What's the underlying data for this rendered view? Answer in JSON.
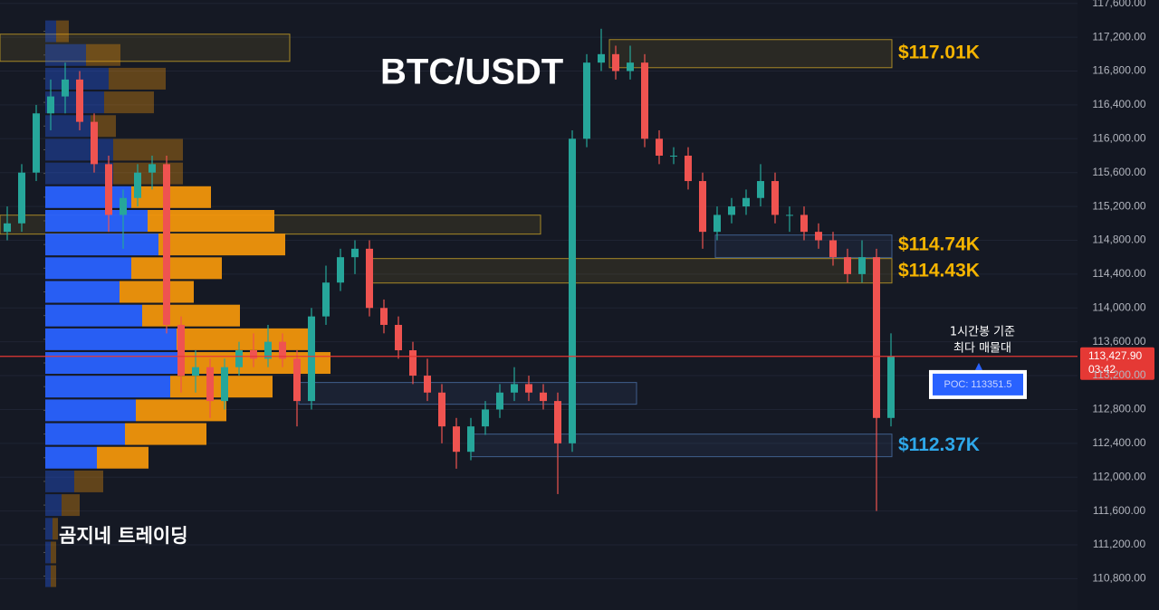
{
  "chart_data": {
    "type": "candlestick",
    "title": "BTC/USDT",
    "watermark": "곰지네 트레이딩",
    "ylim": [
      110430,
      117640
    ],
    "yticks": [
      {
        "value": 110800,
        "label": "110,800.00"
      },
      {
        "value": 111200,
        "label": "111,200.00"
      },
      {
        "value": 111600,
        "label": "111,600.00"
      },
      {
        "value": 112000,
        "label": "112,000.00"
      },
      {
        "value": 112400,
        "label": "112,400.00"
      },
      {
        "value": 112800,
        "label": "112,800.00"
      },
      {
        "value": 113200,
        "label": "113,200.00"
      },
      {
        "value": 113600,
        "label": "113,600.00"
      },
      {
        "value": 114000,
        "label": "114,000.00"
      },
      {
        "value": 114400,
        "label": "114,400.00"
      },
      {
        "value": 114800,
        "label": "114,800.00"
      },
      {
        "value": 115200,
        "label": "115,200.00"
      },
      {
        "value": 115600,
        "label": "115,600.00"
      },
      {
        "value": 116000,
        "label": "116,000.00"
      },
      {
        "value": 116400,
        "label": "116,400.00"
      },
      {
        "value": 116800,
        "label": "116,800.00"
      },
      {
        "value": 117200,
        "label": "117,200.00"
      },
      {
        "value": 117600,
        "label": "117,600.00"
      }
    ],
    "grid": true,
    "up_color": "#26a69a",
    "down_color": "#ef5350",
    "candles": [
      [
        114900,
        115200,
        114800,
        115000
      ],
      [
        115000,
        115700,
        114900,
        115600
      ],
      [
        115600,
        116400,
        115500,
        116300
      ],
      [
        116300,
        116700,
        116100,
        116500
      ],
      [
        116500,
        116900,
        116300,
        116700
      ],
      [
        116700,
        116800,
        116100,
        116200
      ],
      [
        116200,
        116300,
        115600,
        115700
      ],
      [
        115700,
        115800,
        114900,
        115100
      ],
      [
        115100,
        115400,
        114700,
        115300
      ],
      [
        115300,
        115700,
        115200,
        115600
      ],
      [
        115600,
        115800,
        115400,
        115700
      ],
      [
        115700,
        115800,
        113700,
        113800
      ],
      [
        113800,
        113900,
        113000,
        113200
      ],
      [
        113200,
        113500,
        113000,
        113300
      ],
      [
        113300,
        113400,
        112700,
        112900
      ],
      [
        112900,
        113400,
        112800,
        113300
      ],
      [
        113300,
        113600,
        113200,
        113500
      ],
      [
        113500,
        113700,
        113300,
        113400
      ],
      [
        113400,
        113800,
        113300,
        113600
      ],
      [
        113600,
        113700,
        113300,
        113400
      ],
      [
        113400,
        113500,
        112600,
        112900
      ],
      [
        112900,
        114000,
        112800,
        113900
      ],
      [
        113900,
        114500,
        113800,
        114300
      ],
      [
        114300,
        114700,
        114200,
        114600
      ],
      [
        114600,
        114800,
        114400,
        114700
      ],
      [
        114700,
        114800,
        113900,
        114000
      ],
      [
        114000,
        114100,
        113700,
        113800
      ],
      [
        113800,
        113900,
        113400,
        113500
      ],
      [
        113500,
        113600,
        113100,
        113200
      ],
      [
        113200,
        113400,
        112900,
        113000
      ],
      [
        113000,
        113100,
        112400,
        112600
      ],
      [
        112600,
        112700,
        112100,
        112300
      ],
      [
        112300,
        112700,
        112200,
        112600
      ],
      [
        112600,
        112900,
        112500,
        112800
      ],
      [
        112800,
        113100,
        112700,
        113000
      ],
      [
        113000,
        113300,
        112900,
        113100
      ],
      [
        113100,
        113200,
        112900,
        113000
      ],
      [
        113000,
        113100,
        112800,
        112900
      ],
      [
        112900,
        113000,
        111800,
        112400
      ],
      [
        112400,
        116100,
        112300,
        116000
      ],
      [
        116000,
        117000,
        115900,
        116900
      ],
      [
        116900,
        117300,
        116800,
        117000
      ],
      [
        117000,
        117100,
        116700,
        116800
      ],
      [
        116800,
        117100,
        116700,
        116900
      ],
      [
        116900,
        117000,
        115900,
        116000
      ],
      [
        116000,
        116100,
        115700,
        115800
      ],
      [
        115800,
        115900,
        115700,
        115800
      ],
      [
        115800,
        115900,
        115400,
        115500
      ],
      [
        115500,
        115600,
        114700,
        114900
      ],
      [
        114900,
        115200,
        114800,
        115100
      ],
      [
        115100,
        115300,
        115000,
        115200
      ],
      [
        115200,
        115400,
        115100,
        115300
      ],
      [
        115300,
        115700,
        115200,
        115500
      ],
      [
        115500,
        115600,
        115000,
        115100
      ],
      [
        115100,
        115200,
        114900,
        115100
      ],
      [
        115100,
        115200,
        114800,
        114900
      ],
      [
        114900,
        115000,
        114700,
        114800
      ],
      [
        114800,
        114900,
        114500,
        114600
      ],
      [
        114600,
        114700,
        114300,
        114400
      ],
      [
        114400,
        114800,
        114300,
        114600
      ],
      [
        114600,
        114700,
        111600,
        112700
      ],
      [
        112700,
        113700,
        112600,
        113428
      ]
    ],
    "volume_profile": {
      "prices": [
        117270,
        116990,
        116710,
        116430,
        116150,
        115870,
        115590,
        115310,
        115030,
        114750,
        114470,
        114190,
        113910,
        113630,
        113350,
        113070,
        112790,
        112510,
        112230,
        111950,
        111670,
        111390,
        111110,
        110830
      ],
      "buy_color": "#2962ff",
      "sell_color": "#f0950c",
      "buy": [
        12,
        45,
        70,
        65,
        50,
        75,
        75,
        95,
        113,
        125,
        95,
        82,
        107,
        145,
        147,
        138,
        100,
        88,
        57,
        32,
        18,
        8,
        6,
        6
      ],
      "sell": [
        14,
        38,
        63,
        55,
        28,
        77,
        77,
        88,
        140,
        140,
        100,
        82,
        108,
        150,
        168,
        113,
        100,
        90,
        57,
        32,
        20,
        6,
        6,
        6
      ]
    },
    "zones": [
      {
        "range": [
          116915,
          117236
        ],
        "color": "#c9a227"
      },
      {
        "range": [
          116840,
          117172
        ],
        "color": "#c9a227"
      },
      {
        "range": [
          114873,
          115097
        ],
        "color": "#c9a227"
      },
      {
        "range": [
          114595,
          114862
        ],
        "color": "#4a6fa5"
      },
      {
        "range": [
          114295,
          114584
        ],
        "color": "#c9a227"
      },
      {
        "range": [
          112862,
          113119
        ],
        "color": "#4a6fa5"
      },
      {
        "range": [
          112242,
          112509
        ],
        "color": "#4a6fa5"
      }
    ],
    "levels": [
      {
        "value": 117010,
        "label": "$117.01K",
        "color": "#f5b400"
      },
      {
        "value": 114740,
        "label": "$114.74K",
        "color": "#f5b400"
      },
      {
        "value": 114430,
        "label": "$114.43K",
        "color": "#f5b400"
      },
      {
        "value": 112370,
        "label": "$112.37K",
        "color": "#2ea8ea"
      }
    ],
    "current_price": {
      "value": 113427.9,
      "label": "113,427.90",
      "timer": "03:42"
    },
    "poc": {
      "value": 113351.5,
      "label": "POC: 113351.5"
    },
    "annotation": [
      "1시간봉 기준",
      "최다 매물대"
    ]
  }
}
